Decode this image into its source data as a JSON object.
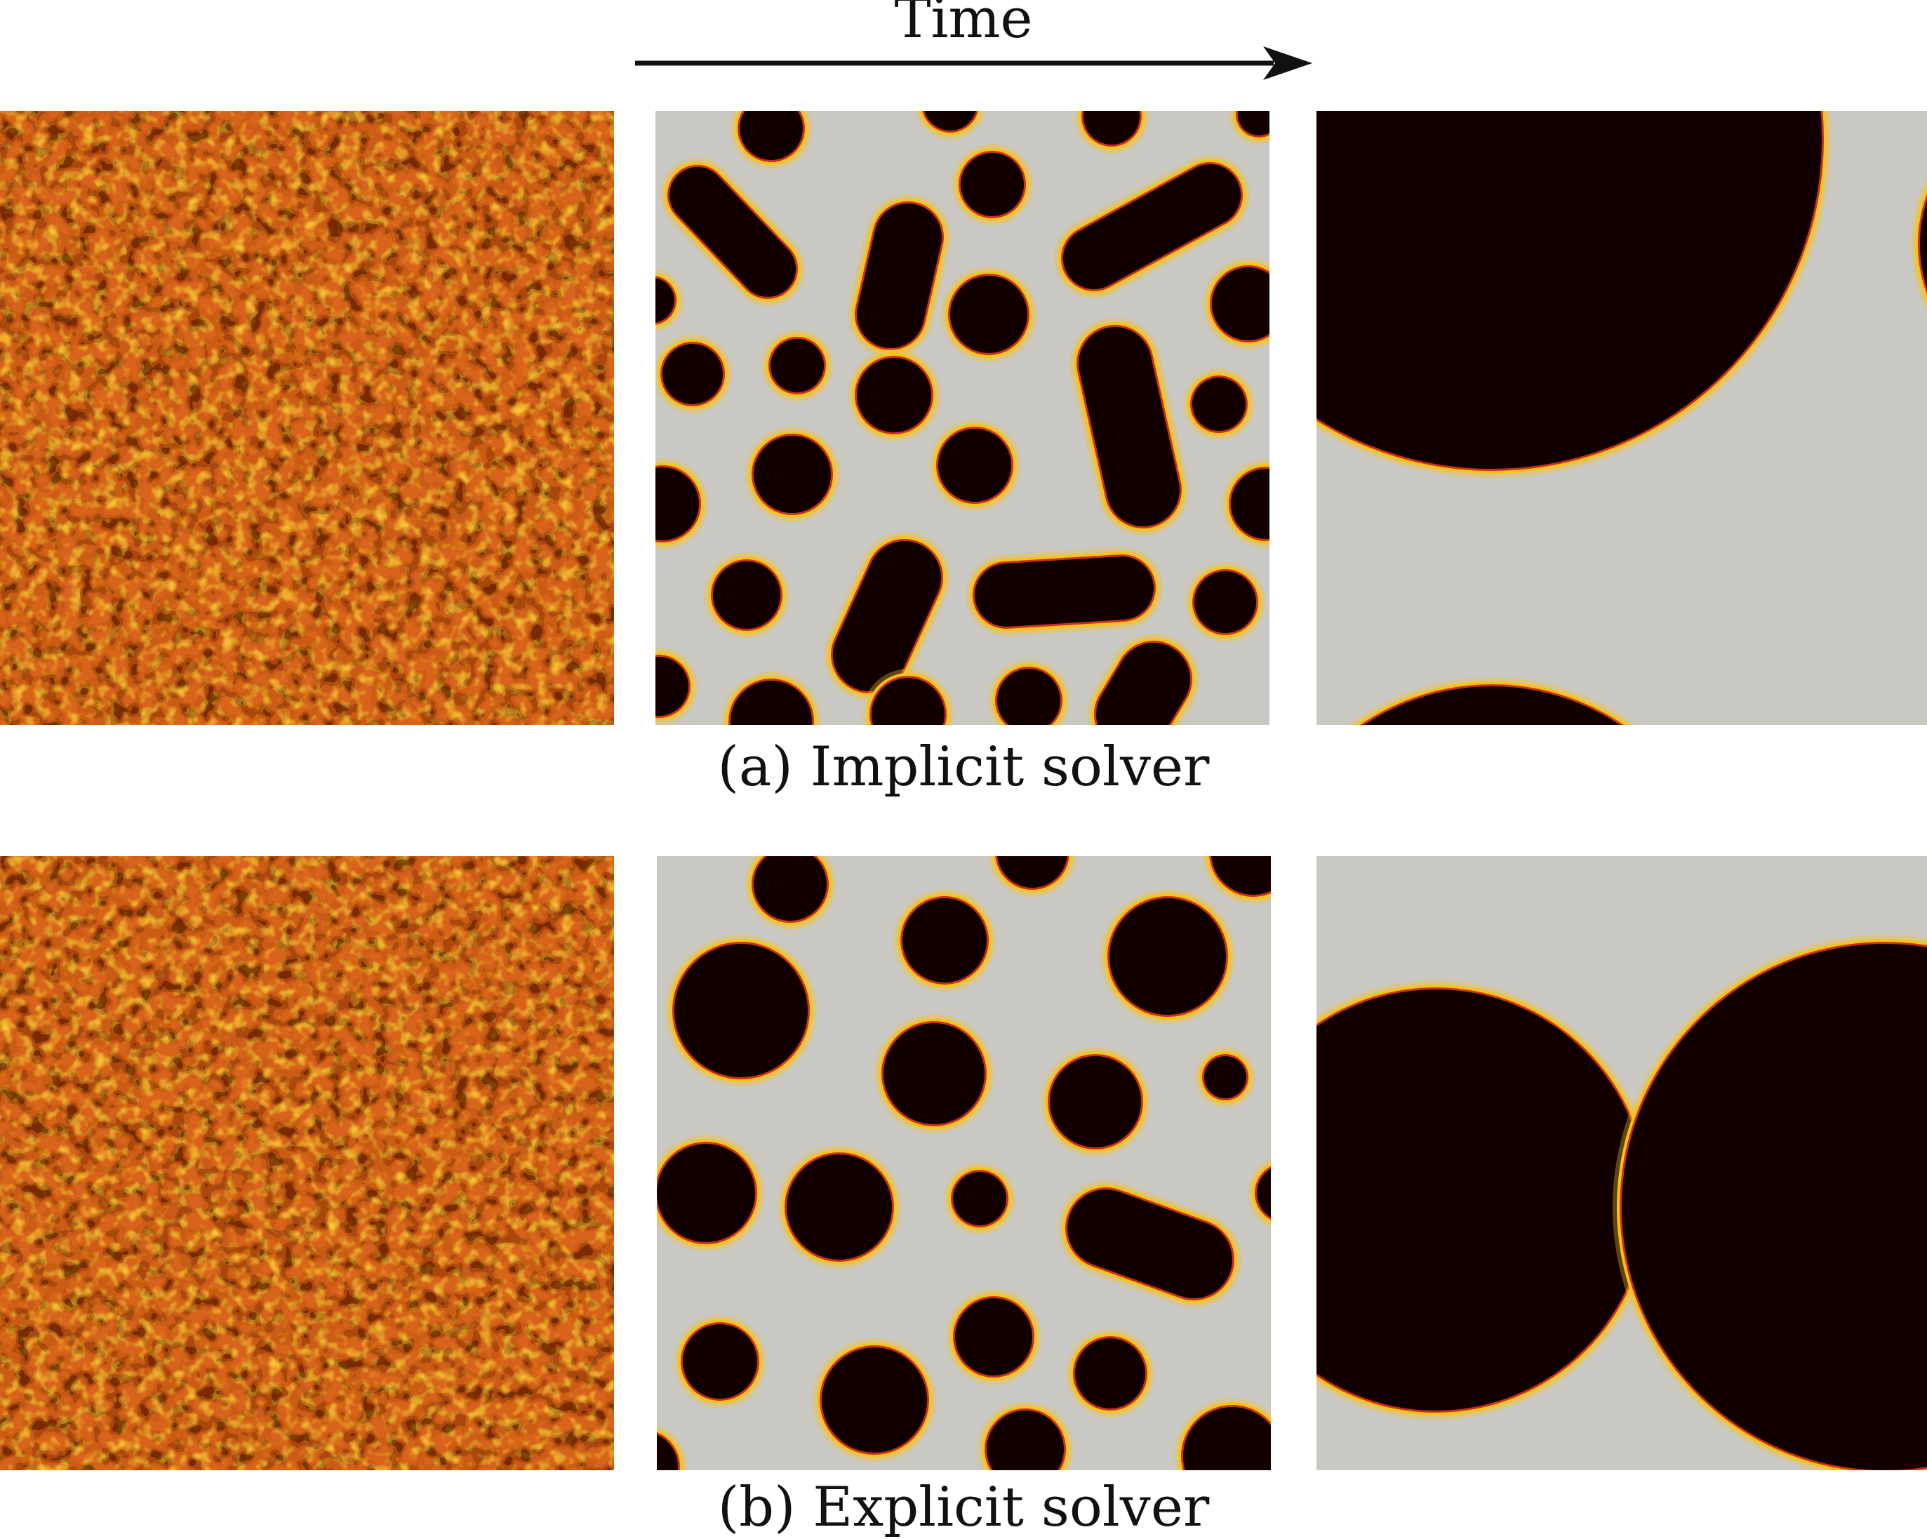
{
  "figure": {
    "time_label": "Time",
    "rows": [
      {
        "caption": "(a) Implicit solver",
        "stages": [
          "initial",
          "intermediate",
          "late"
        ]
      },
      {
        "caption": "(b) Explicit solver",
        "stages": [
          "initial",
          "intermediate",
          "late"
        ]
      }
    ]
  },
  "colors": {
    "dark_phase": "#120000",
    "interface": "#c8321a",
    "interface_glow": "#f6c21c",
    "light_phase": "#c9c8c2",
    "noise_base": "#d8641e"
  }
}
